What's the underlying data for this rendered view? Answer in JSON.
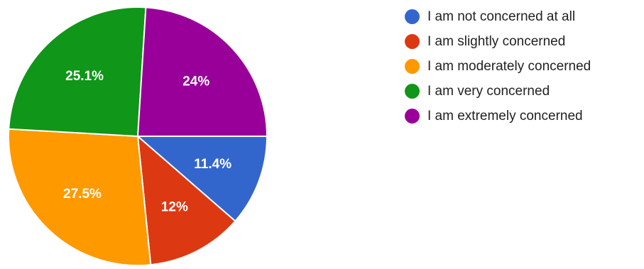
{
  "chart_data": {
    "type": "pie",
    "title": "",
    "start_angle_deg": 0,
    "direction": "clockwise",
    "slices": [
      {
        "label": "I am not concerned at all",
        "value": 11.4,
        "value_label": "11.4%",
        "color": "#3366cc"
      },
      {
        "label": "I am slightly concerned",
        "value": 12.0,
        "value_label": "12%",
        "color": "#dc3912"
      },
      {
        "label": "I am moderately concerned",
        "value": 27.5,
        "value_label": "27.5%",
        "color": "#ff9900"
      },
      {
        "label": "I am very concerned",
        "value": 25.1,
        "value_label": "25.1%",
        "color": "#109618"
      },
      {
        "label": "I am extremely concerned",
        "value": 24.0,
        "value_label": "24%",
        "color": "#990099"
      }
    ],
    "legend_position": "right"
  }
}
